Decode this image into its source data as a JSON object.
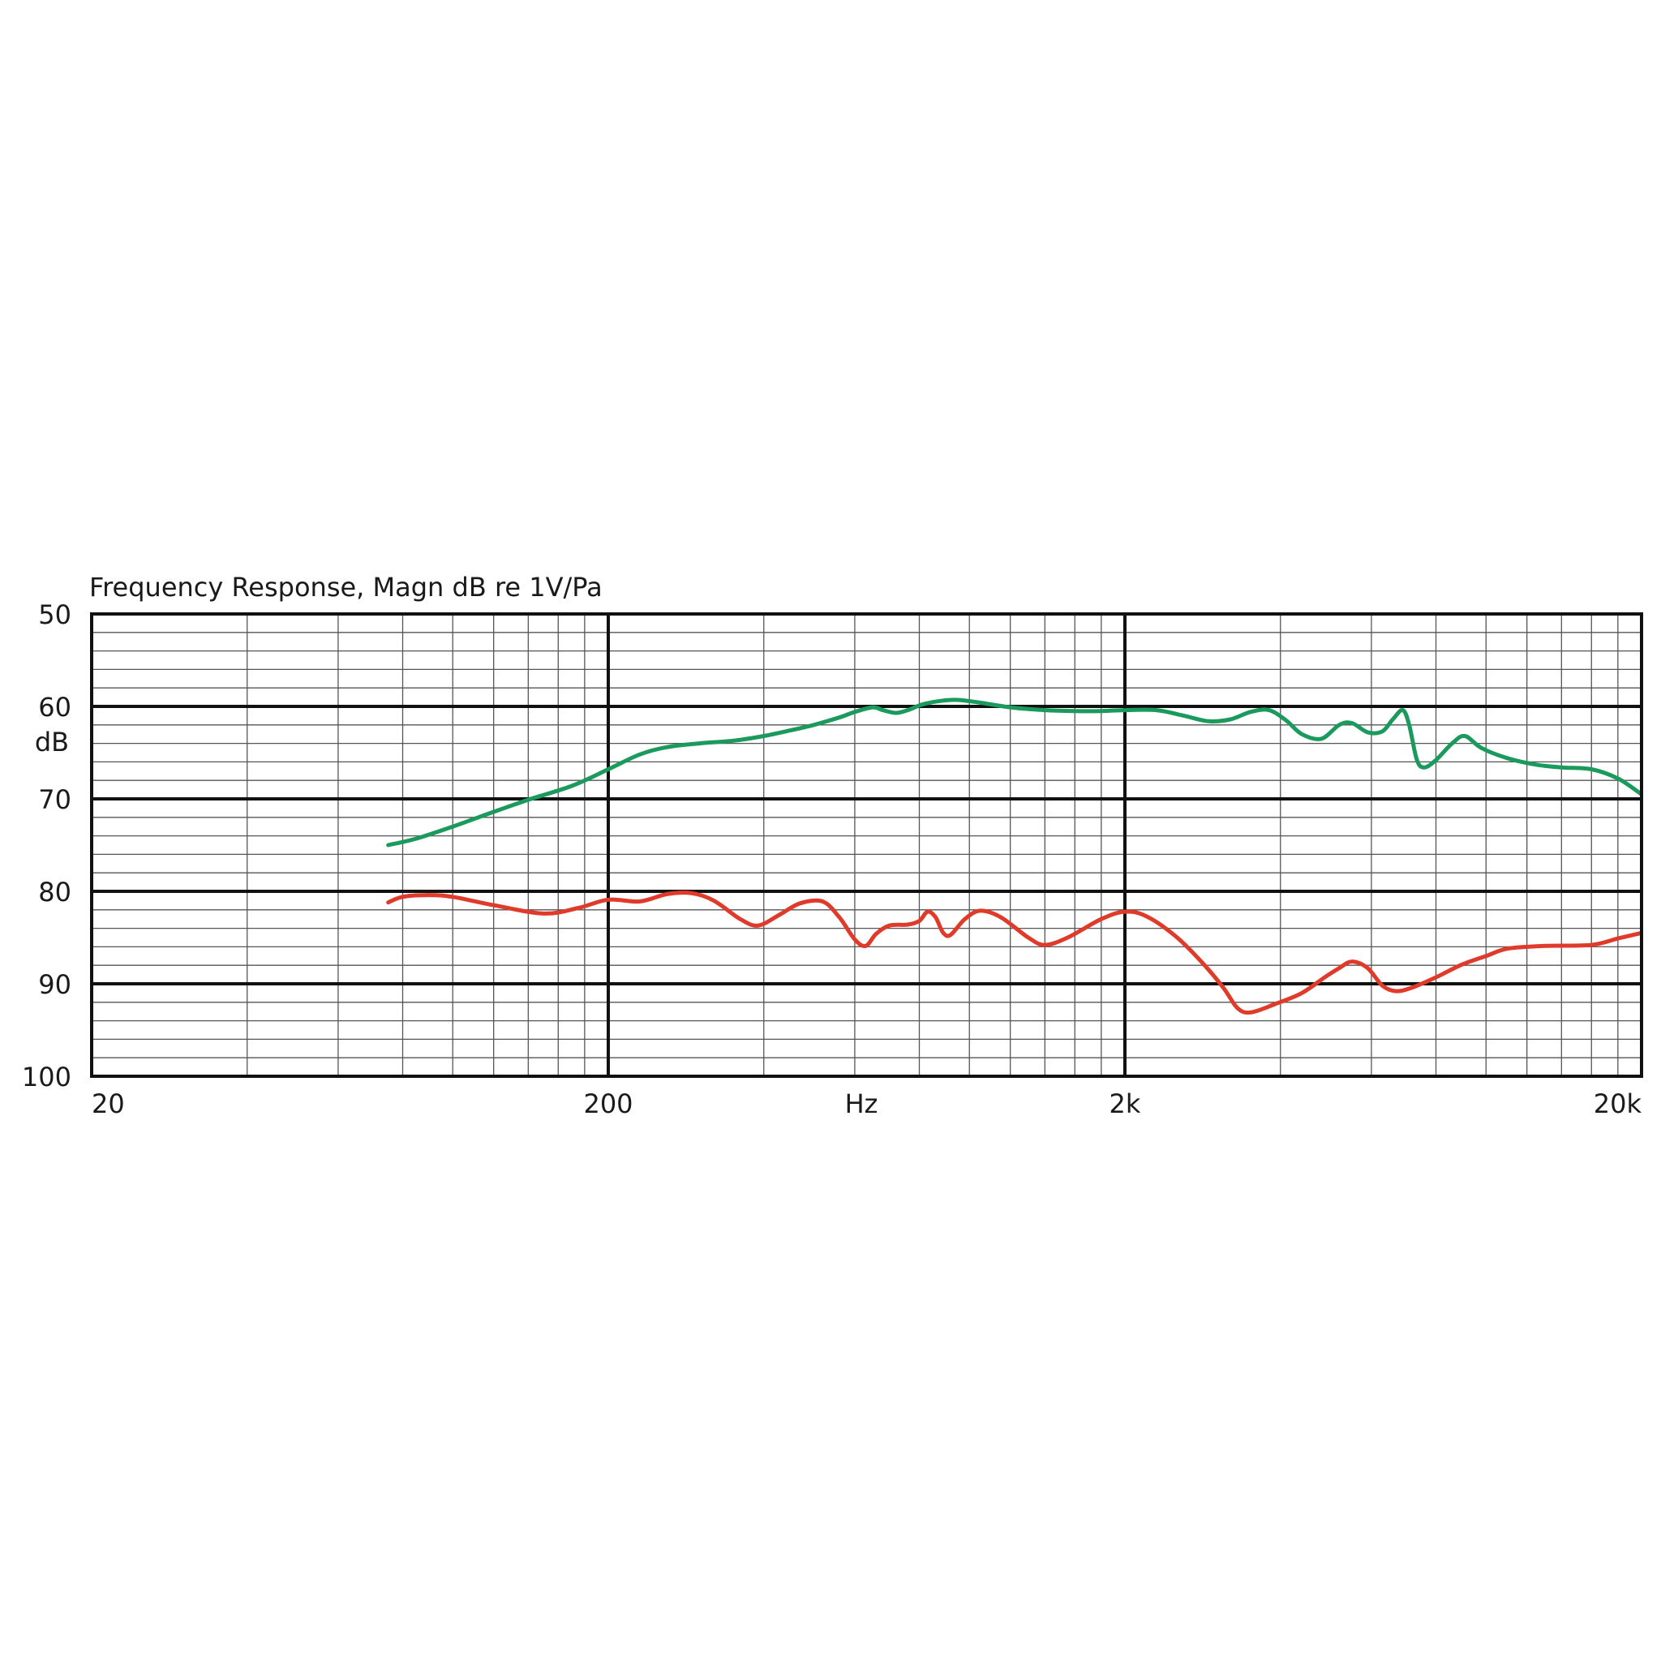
{
  "chart_data": {
    "type": "line",
    "title": "Frequency Response, Magn  dB re 1V/Pa",
    "xlabel": "Hz",
    "ylabel": "dB",
    "x_scale": "log",
    "xlim": [
      20,
      20000
    ],
    "ylim": [
      50,
      100
    ],
    "y_inverted": true,
    "grid": true,
    "x_ticks": [
      {
        "value": 20,
        "label": "20"
      },
      {
        "value": 200,
        "label": "200"
      },
      {
        "value": 2000,
        "label": "2k"
      },
      {
        "value": 20000,
        "label": "20k"
      }
    ],
    "y_ticks": [
      {
        "value": 50,
        "label": "50"
      },
      {
        "value": 60,
        "label": "60"
      },
      {
        "value": 70,
        "label": "70"
      },
      {
        "value": 80,
        "label": "80"
      },
      {
        "value": 90,
        "label": "90"
      },
      {
        "value": 100,
        "label": "100"
      }
    ],
    "series": [
      {
        "color": "#1a9a5c",
        "points": [
          [
            75,
            75.0
          ],
          [
            85,
            74.3
          ],
          [
            100,
            73.0
          ],
          [
            120,
            71.4
          ],
          [
            140,
            70.1
          ],
          [
            170,
            68.6
          ],
          [
            200,
            66.8
          ],
          [
            230,
            65.2
          ],
          [
            260,
            64.4
          ],
          [
            300,
            64.0
          ],
          [
            350,
            63.7
          ],
          [
            400,
            63.2
          ],
          [
            450,
            62.6
          ],
          [
            500,
            62.0
          ],
          [
            560,
            61.2
          ],
          [
            600,
            60.6
          ],
          [
            650,
            60.1
          ],
          [
            680,
            60.4
          ],
          [
            720,
            60.7
          ],
          [
            760,
            60.4
          ],
          [
            810,
            59.8
          ],
          [
            880,
            59.4
          ],
          [
            950,
            59.3
          ],
          [
            1050,
            59.6
          ],
          [
            1200,
            60.1
          ],
          [
            1400,
            60.4
          ],
          [
            1600,
            60.5
          ],
          [
            1800,
            60.5
          ],
          [
            2000,
            60.4
          ],
          [
            2300,
            60.4
          ],
          [
            2600,
            61.0
          ],
          [
            2900,
            61.6
          ],
          [
            3200,
            61.4
          ],
          [
            3500,
            60.6
          ],
          [
            3800,
            60.4
          ],
          [
            4100,
            61.5
          ],
          [
            4400,
            63.0
          ],
          [
            4800,
            63.5
          ],
          [
            5200,
            62.0
          ],
          [
            5500,
            61.8
          ],
          [
            5900,
            62.8
          ],
          [
            6300,
            62.7
          ],
          [
            6600,
            61.4
          ],
          [
            6900,
            60.4
          ],
          [
            7100,
            62.0
          ],
          [
            7350,
            65.8
          ],
          [
            7600,
            66.6
          ],
          [
            8000,
            65.8
          ],
          [
            8600,
            64.0
          ],
          [
            9100,
            63.2
          ],
          [
            9800,
            64.5
          ],
          [
            11000,
            65.6
          ],
          [
            12500,
            66.3
          ],
          [
            14000,
            66.6
          ],
          [
            16000,
            66.8
          ],
          [
            18000,
            67.8
          ],
          [
            20000,
            69.5
          ]
        ]
      },
      {
        "color": "#e03a2a",
        "points": [
          [
            75,
            81.2
          ],
          [
            80,
            80.6
          ],
          [
            90,
            80.4
          ],
          [
            100,
            80.6
          ],
          [
            120,
            81.5
          ],
          [
            150,
            82.4
          ],
          [
            175,
            81.8
          ],
          [
            200,
            80.9
          ],
          [
            230,
            81.1
          ],
          [
            260,
            80.3
          ],
          [
            290,
            80.2
          ],
          [
            320,
            81.0
          ],
          [
            360,
            83.0
          ],
          [
            390,
            83.7
          ],
          [
            430,
            82.5
          ],
          [
            470,
            81.3
          ],
          [
            520,
            81.1
          ],
          [
            560,
            82.8
          ],
          [
            600,
            85.2
          ],
          [
            630,
            85.9
          ],
          [
            660,
            84.6
          ],
          [
            700,
            83.7
          ],
          [
            760,
            83.6
          ],
          [
            800,
            83.2
          ],
          [
            830,
            82.2
          ],
          [
            860,
            82.8
          ],
          [
            890,
            84.5
          ],
          [
            920,
            84.7
          ],
          [
            980,
            83.0
          ],
          [
            1050,
            82.1
          ],
          [
            1150,
            82.8
          ],
          [
            1300,
            85.0
          ],
          [
            1400,
            85.8
          ],
          [
            1550,
            85.0
          ],
          [
            1800,
            83.0
          ],
          [
            2000,
            82.2
          ],
          [
            2200,
            82.7
          ],
          [
            2500,
            84.8
          ],
          [
            2800,
            87.5
          ],
          [
            3100,
            90.4
          ],
          [
            3300,
            92.6
          ],
          [
            3500,
            93.1
          ],
          [
            3900,
            92.2
          ],
          [
            4400,
            91.0
          ],
          [
            4900,
            89.2
          ],
          [
            5200,
            88.3
          ],
          [
            5500,
            87.6
          ],
          [
            5900,
            88.3
          ],
          [
            6300,
            90.2
          ],
          [
            6700,
            90.8
          ],
          [
            7200,
            90.4
          ],
          [
            8000,
            89.3
          ],
          [
            9000,
            87.9
          ],
          [
            10000,
            87.0
          ],
          [
            11000,
            86.2
          ],
          [
            13000,
            85.9
          ],
          [
            16000,
            85.8
          ],
          [
            18000,
            85.1
          ],
          [
            20000,
            84.5
          ],
          [
            22000,
            84.0
          ]
        ]
      }
    ]
  }
}
